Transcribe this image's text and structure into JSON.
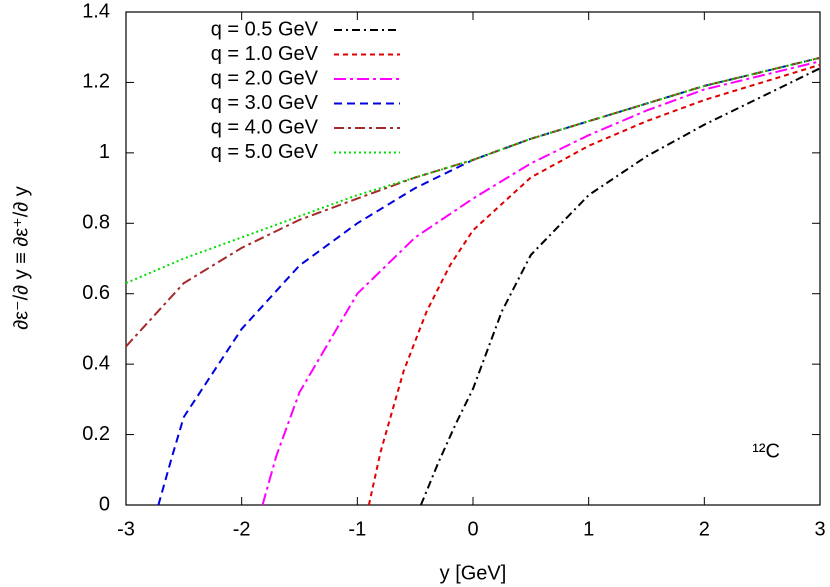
{
  "chart_data": {
    "type": "line",
    "xlabel": "y [GeV]",
    "ylabel": "∂ε⁻/∂ y ≡ ∂ε⁺/∂ y",
    "annotation": "¹²C",
    "xlim": [
      -3,
      3
    ],
    "xticks": [
      -3,
      -2,
      -1,
      0,
      1,
      2,
      3
    ],
    "ylim": [
      0,
      1.4
    ],
    "yticks": [
      0,
      0.2,
      0.4,
      0.6,
      0.8,
      1,
      1.2,
      1.4
    ],
    "legend": "top-left",
    "series": [
      {
        "name": "q = 0.5 GeV",
        "color": "#000000",
        "dash": "8 4 2 4",
        "x": [
          -0.45,
          -0.3,
          -0.15,
          0,
          0.25,
          0.5,
          1,
          1.5,
          2,
          2.5,
          3
        ],
        "values": [
          0,
          0.12,
          0.23,
          0.33,
          0.55,
          0.71,
          0.88,
          0.99,
          1.08,
          1.16,
          1.24
        ]
      },
      {
        "name": "q = 1.0 GeV",
        "color": "#e00000",
        "dash": "5 4",
        "x": [
          -0.9,
          -0.8,
          -0.6,
          -0.4,
          -0.2,
          0,
          0.5,
          1,
          1.5,
          2,
          2.5,
          3
        ],
        "values": [
          0,
          0.15,
          0.38,
          0.55,
          0.68,
          0.78,
          0.93,
          1.02,
          1.09,
          1.15,
          1.2,
          1.25
        ]
      },
      {
        "name": "q = 2.0 GeV",
        "color": "#ff00ff",
        "dash": "12 4 3 4",
        "x": [
          -1.82,
          -1.7,
          -1.5,
          -1,
          -0.5,
          0,
          0.5,
          1,
          1.5,
          2,
          2.5,
          3
        ],
        "values": [
          0,
          0.14,
          0.32,
          0.6,
          0.76,
          0.87,
          0.97,
          1.05,
          1.12,
          1.18,
          1.22,
          1.26
        ]
      },
      {
        "name": "q = 3.0 GeV",
        "color": "#0000e0",
        "dash": "8 5",
        "x": [
          -2.72,
          -2.6,
          -2.5,
          -2,
          -1.5,
          -1,
          -0.5,
          0,
          0.5,
          1,
          1.5,
          2,
          2.5,
          3
        ],
        "values": [
          0,
          0.14,
          0.25,
          0.5,
          0.68,
          0.8,
          0.9,
          0.98,
          1.04,
          1.09,
          1.14,
          1.19,
          1.23,
          1.27
        ]
      },
      {
        "name": "q = 4.0 GeV",
        "color": "#a52a2a",
        "dash": "10 4 3 4",
        "x": [
          -3,
          -2.5,
          -2,
          -1.5,
          -1,
          -0.5,
          0,
          0.5,
          1,
          1.5,
          2,
          2.5,
          3
        ],
        "values": [
          0.45,
          0.63,
          0.73,
          0.81,
          0.87,
          0.93,
          0.98,
          1.04,
          1.09,
          1.14,
          1.19,
          1.23,
          1.27
        ]
      },
      {
        "name": "q = 5.0 GeV",
        "color": "#00dd00",
        "dash": "2 3",
        "x": [
          -3,
          -2.5,
          -2,
          -1.5,
          -1,
          -0.5,
          0,
          0.5,
          1,
          1.5,
          2,
          2.5,
          3
        ],
        "values": [
          0.63,
          0.7,
          0.76,
          0.82,
          0.88,
          0.93,
          0.98,
          1.04,
          1.09,
          1.14,
          1.19,
          1.23,
          1.27
        ]
      }
    ]
  }
}
